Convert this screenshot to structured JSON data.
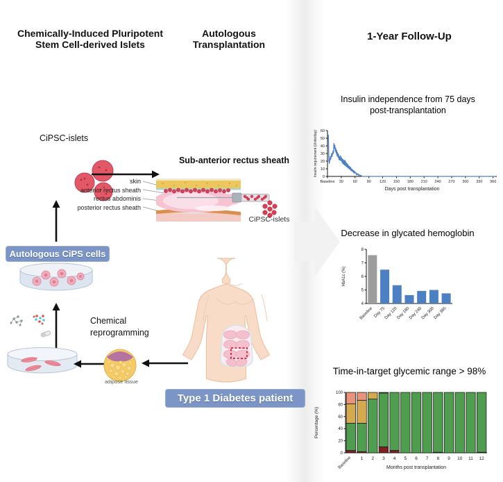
{
  "columns": {
    "left_title": "Chemically-Induced Pluripotent\nStem Cell-derived Islets",
    "middle_title": "Autologous\nTransplantation",
    "right_title": "1-Year Follow-Up"
  },
  "left": {
    "cipsc_islets_label": "CiPSC-islets",
    "cips_badge": "Autologous CiPS cells",
    "chemical_reprogramming": "Chemical\nreprogramming",
    "adipose_label": "adipose tissue"
  },
  "middle": {
    "site_title": "Sub-anterior rectus sheath",
    "layer_labels": [
      "skin",
      "anterior rectus sheath",
      "rectus abdominis",
      "posterior rectus sheath"
    ],
    "islets_label": "CiPSC-islets",
    "patient_badge": "Type 1 Diabetes patient"
  },
  "chart_data": [
    {
      "type": "line",
      "title": "Insulin independence from 75 days\npost-transplantation",
      "xlabel": "Days post transplantation",
      "ylabel": "Insulin requirement (Units/day)",
      "xlim": [
        0,
        368
      ],
      "ylim": [
        0,
        60
      ],
      "yticks": [
        0,
        10,
        20,
        30,
        40,
        50,
        60
      ],
      "xticks": [
        {
          "v": 0,
          "label": "Baseline"
        },
        {
          "v": 30,
          "label": "30"
        },
        {
          "v": 60,
          "label": "60"
        },
        {
          "v": 90,
          "label": "90"
        },
        {
          "v": 120,
          "label": "120"
        },
        {
          "v": 150,
          "label": "150"
        },
        {
          "v": 180,
          "label": "180"
        },
        {
          "v": 210,
          "label": "210"
        },
        {
          "v": 240,
          "label": "240"
        },
        {
          "v": 270,
          "label": "270"
        },
        {
          "v": 300,
          "label": "300"
        },
        {
          "v": 330,
          "label": "330"
        },
        {
          "v": 360,
          "label": "360"
        }
      ],
      "line_color": "#4d7fc3",
      "points": [
        [
          0,
          55
        ],
        [
          2,
          54
        ],
        [
          3,
          20
        ],
        [
          4,
          17
        ],
        [
          6,
          26
        ],
        [
          7,
          22
        ],
        [
          9,
          30
        ],
        [
          10,
          26
        ],
        [
          12,
          33
        ],
        [
          13,
          30
        ],
        [
          14,
          43
        ],
        [
          15,
          37
        ],
        [
          16,
          41
        ],
        [
          17,
          33
        ],
        [
          18,
          37
        ],
        [
          19,
          30
        ],
        [
          20,
          34
        ],
        [
          21,
          27
        ],
        [
          22,
          31
        ],
        [
          23,
          25
        ],
        [
          24,
          29
        ],
        [
          25,
          22
        ],
        [
          26,
          26
        ],
        [
          27,
          21
        ],
        [
          28,
          27
        ],
        [
          29,
          21
        ],
        [
          30,
          25
        ],
        [
          31,
          19
        ],
        [
          32,
          23
        ],
        [
          33,
          17
        ],
        [
          34,
          22
        ],
        [
          35,
          16
        ],
        [
          36,
          21
        ],
        [
          37,
          15
        ],
        [
          38,
          21
        ],
        [
          39,
          14
        ],
        [
          40,
          19
        ],
        [
          41,
          13
        ],
        [
          42,
          17
        ],
        [
          43,
          12
        ],
        [
          44,
          16
        ],
        [
          45,
          11
        ],
        [
          46,
          14
        ],
        [
          47,
          10
        ],
        [
          48,
          13
        ],
        [
          49,
          9
        ],
        [
          50,
          12
        ],
        [
          51,
          8
        ],
        [
          52,
          10
        ],
        [
          53,
          7
        ],
        [
          54,
          9
        ],
        [
          55,
          6
        ],
        [
          56,
          8
        ],
        [
          57,
          5
        ],
        [
          58,
          7
        ],
        [
          59,
          4
        ],
        [
          60,
          6
        ],
        [
          62,
          4
        ],
        [
          63,
          2
        ],
        [
          64,
          4
        ],
        [
          66,
          2
        ],
        [
          67,
          3
        ],
        [
          68,
          1
        ],
        [
          70,
          2
        ],
        [
          72,
          1
        ],
        [
          74,
          1
        ],
        [
          75,
          0
        ],
        [
          365,
          0
        ]
      ]
    },
    {
      "type": "bar",
      "title": "Decrease in glycated hemoglobin",
      "ylabel": "HbA1c (%)",
      "ylim": [
        4,
        8
      ],
      "yticks": [
        4,
        5,
        6,
        7,
        8
      ],
      "categories": [
        "Baseline",
        "Day 75",
        "Day 120",
        "Day 180",
        "Day 240",
        "Day 300",
        "Day 365"
      ],
      "values": [
        7.57,
        6.5,
        5.35,
        4.62,
        4.93,
        5.0,
        4.75
      ],
      "bar_colors": [
        "#9d9d9d",
        "#4d7fc3",
        "#4d7fc3",
        "#4d7fc3",
        "#4d7fc3",
        "#4d7fc3",
        "#4d7fc3"
      ]
    },
    {
      "type": "stacked_bar",
      "title": "Time-in-target glycemic range > 98%",
      "xlabel": "Months post transplantation",
      "ylabel": "Percentage (%)",
      "ylim": [
        0,
        100
      ],
      "yticks": [
        0,
        20,
        40,
        60,
        80,
        100
      ],
      "categories": [
        "Baseline",
        "1",
        "2",
        "3",
        "4",
        "5",
        "6",
        "7",
        "8",
        "9",
        "10",
        "11",
        "12"
      ],
      "series": [
        {
          "name": "dark-red",
          "color": "#7e2020",
          "values": [
            4,
            2,
            0,
            10,
            4,
            0,
            0,
            0,
            1,
            0,
            0,
            0,
            1
          ]
        },
        {
          "name": "green",
          "color": "#4f9d4e",
          "values": [
            45,
            47,
            89,
            89,
            96,
            100,
            100,
            100,
            99,
            100,
            100,
            100,
            99
          ]
        },
        {
          "name": "tan",
          "color": "#d5a94e",
          "values": [
            32,
            38,
            11,
            1,
            0,
            0,
            0,
            0,
            0,
            0,
            0,
            0,
            0
          ]
        },
        {
          "name": "salmon",
          "color": "#e9947a",
          "values": [
            19,
            13,
            0,
            0,
            0,
            0,
            0,
            0,
            0,
            0,
            0,
            0,
            0
          ]
        }
      ],
      "bar_outline": "#1c1c1c"
    }
  ]
}
